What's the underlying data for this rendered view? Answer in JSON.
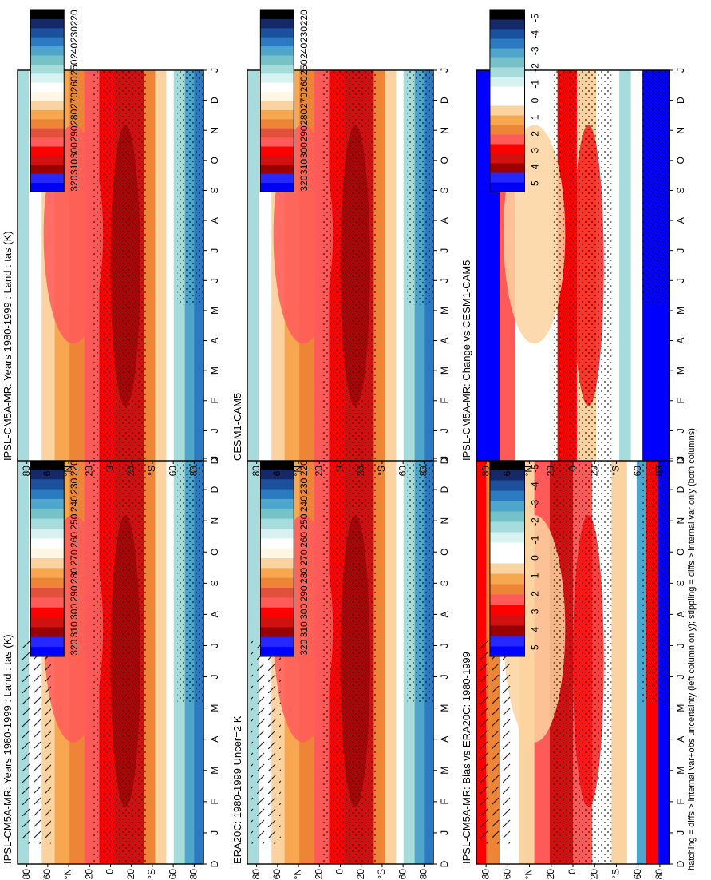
{
  "figure": {
    "footnote": "hatching = diffs > internal var+obs uncertainty (left column only); stippling = diffs > internal var only (both columns)"
  },
  "chart_data": [
    {
      "type": "heatmap",
      "title": "IPSL-CM5A-MR: Years 1980-1999 : Land : tas (K)",
      "x_ticks": [
        "D",
        "J",
        "F",
        "M",
        "A",
        "M",
        "J",
        "J",
        "A",
        "S",
        "O",
        "N",
        "D",
        "J"
      ],
      "y_ticks": [
        "80",
        "60",
        "°N",
        "20",
        "0",
        "20",
        "°S",
        "60",
        "80"
      ],
      "colorbar_ticks": [
        "320",
        "310",
        "300",
        "290",
        "280",
        "270",
        "260",
        "250",
        "240",
        "230",
        "220"
      ],
      "overlay": "hatching+stippling"
    },
    {
      "type": "heatmap",
      "title": "IPSL-CM5A-MR: Years 1980-1999 : Land : tas (K)",
      "x_ticks": [
        "D",
        "J",
        "F",
        "M",
        "A",
        "M",
        "J",
        "J",
        "A",
        "S",
        "O",
        "N",
        "D",
        "J"
      ],
      "y_ticks": [
        "80",
        "60",
        "°N",
        "20",
        "0",
        "20",
        "°S",
        "60",
        "80"
      ],
      "colorbar_ticks": [
        "320",
        "310",
        "300",
        "290",
        "280",
        "270",
        "260",
        "250",
        "240",
        "230",
        "220"
      ],
      "overlay": "stippling"
    },
    {
      "type": "heatmap",
      "title": "ERA20C: 1980-1999 Uncer=2 K",
      "x_ticks": [
        "D",
        "J",
        "F",
        "M",
        "A",
        "M",
        "J",
        "J",
        "A",
        "S",
        "O",
        "N",
        "D",
        "J"
      ],
      "y_ticks": [
        "80",
        "60",
        "°N",
        "20",
        "0",
        "20",
        "°S",
        "60",
        "80"
      ],
      "colorbar_ticks": [
        "320",
        "310",
        "300",
        "290",
        "280",
        "270",
        "260",
        "250",
        "240",
        "230",
        "220"
      ],
      "overlay": "hatching+stippling"
    },
    {
      "type": "heatmap",
      "title": "CESM1-CAM5",
      "x_ticks": [
        "D",
        "J",
        "F",
        "M",
        "A",
        "M",
        "J",
        "J",
        "A",
        "S",
        "O",
        "N",
        "D",
        "J"
      ],
      "y_ticks": [
        "80",
        "60",
        "°N",
        "20",
        "0",
        "20",
        "°S",
        "60",
        "80"
      ],
      "colorbar_ticks": [
        "320",
        "310",
        "300",
        "290",
        "280",
        "270",
        "260",
        "250",
        "240",
        "230",
        "220"
      ],
      "overlay": "stippling"
    },
    {
      "type": "heatmap",
      "title": "IPSL-CM5A-MR: Bias vs ERA20C: 1980-1999",
      "x_ticks": [
        "D",
        "J",
        "F",
        "M",
        "A",
        "M",
        "J",
        "J",
        "A",
        "S",
        "O",
        "N",
        "D",
        "J"
      ],
      "y_ticks": [
        "80",
        "60",
        "°N",
        "20",
        "0",
        "20",
        "°S",
        "60",
        "80"
      ],
      "colorbar_ticks": [
        "5",
        "4",
        "3",
        "2",
        "1",
        "0",
        "-1",
        "-2",
        "-3",
        "-4",
        "-5"
      ],
      "overlay": "hatching+stippling"
    },
    {
      "type": "heatmap",
      "title": "IPSL-CM5A-MR: Change vs CESM1-CAM5",
      "x_ticks": [
        "D",
        "J",
        "F",
        "M",
        "A",
        "M",
        "J",
        "J",
        "A",
        "S",
        "O",
        "N",
        "D",
        "J"
      ],
      "y_ticks": [
        "80",
        "60",
        "°N",
        "20",
        "0",
        "20",
        "°S",
        "60",
        "80"
      ],
      "colorbar_ticks": [
        "5",
        "4",
        "3",
        "2",
        "1",
        "0",
        "-1",
        "-2",
        "-3",
        "-4",
        "-5"
      ],
      "overlay": "stippling"
    }
  ],
  "colors": {
    "abs_scale": [
      "#0000ff",
      "#2727ff",
      "#9b0000",
      "#d21010",
      "#ff0000",
      "#ff5a5a",
      "#e0503a",
      "#ee8436",
      "#f7a750",
      "#fbd3a0",
      "#fff7e6",
      "#ffffff",
      "#d8f2f2",
      "#a6dcdc",
      "#76c2c6",
      "#4ea6cc",
      "#2b7ac2",
      "#1c4f9c",
      "#152868",
      "#000000"
    ],
    "diff_scale": [
      "#0000ff",
      "#2727ff",
      "#9b0000",
      "#d21010",
      "#ff0000",
      "#ff5a5a",
      "#ee8436",
      "#f7a750",
      "#fbd3a0",
      "#ffffff",
      "#ffffff",
      "#d8f2f2",
      "#a6dcdc",
      "#76c2c6",
      "#4ea6cc",
      "#2b7ac2",
      "#1c4f9c",
      "#152868",
      "#000000"
    ]
  }
}
